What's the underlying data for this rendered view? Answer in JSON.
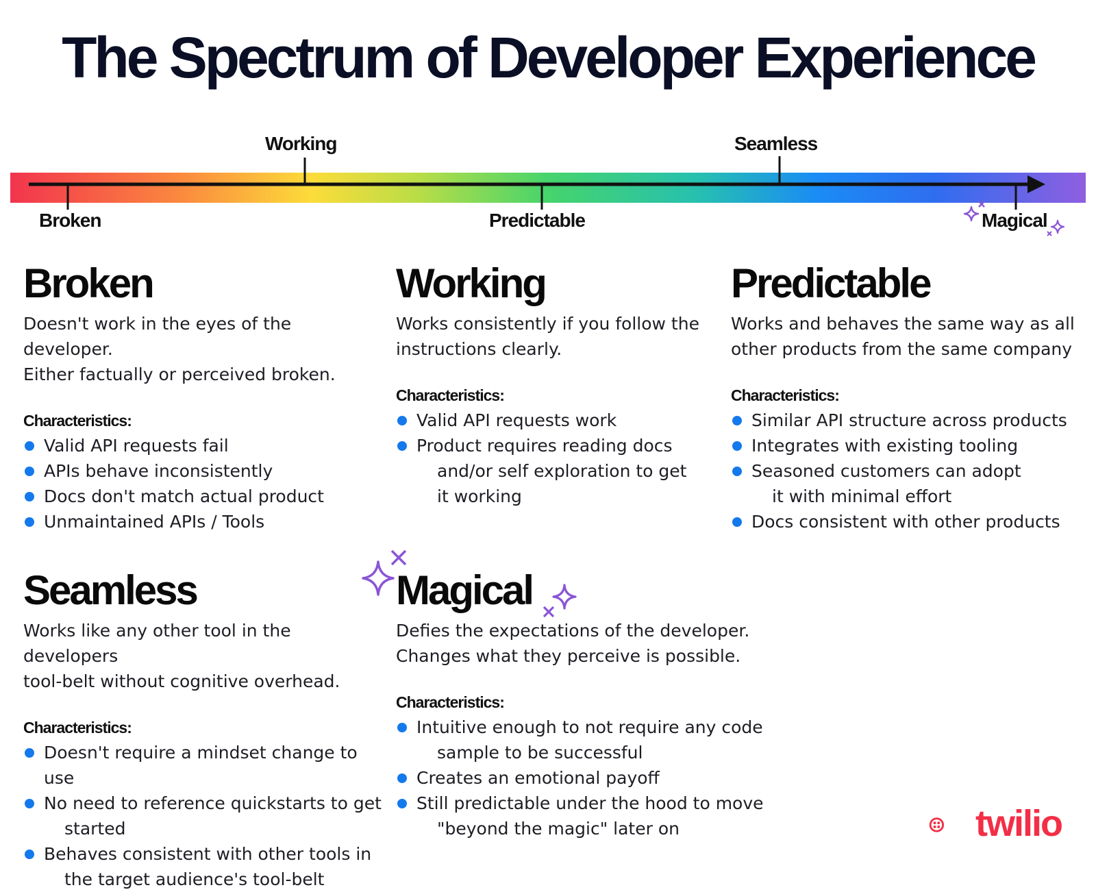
{
  "title": "The Spectrum of Developer Experience",
  "spectrum": {
    "top_labels": [
      "Working",
      "Seamless"
    ],
    "bottom_labels": [
      "Broken",
      "Predictable",
      "Magical"
    ]
  },
  "cards": [
    {
      "heading": "Broken",
      "description": "Doesn't work in the eyes of the developer.\nEither factually or perceived broken.",
      "characteristics_label": "Characteristics:",
      "items": [
        {
          "text": "Valid API requests fail",
          "cont": ""
        },
        {
          "text": "APIs behave inconsistently",
          "cont": ""
        },
        {
          "text": "Docs don't match actual product",
          "cont": ""
        },
        {
          "text": "Unmaintained APIs / Tools",
          "cont": ""
        }
      ]
    },
    {
      "heading": "Working",
      "description": "Works consistently if you follow the\ninstructions clearly.",
      "characteristics_label": "Characteristics:",
      "items": [
        {
          "text": "Valid API requests work",
          "cont": ""
        },
        {
          "text": "Product requires reading docs",
          "cont": "and/or self exploration to get\nit working"
        }
      ]
    },
    {
      "heading": "Predictable",
      "description": "Works and behaves the same way as all\nother products from the same company",
      "characteristics_label": "Characteristics:",
      "items": [
        {
          "text": "Similar API structure across products",
          "cont": ""
        },
        {
          "text": "Integrates with existing tooling",
          "cont": ""
        },
        {
          "text": "Seasoned customers can adopt",
          "cont": "it with minimal effort"
        },
        {
          "text": "Docs consistent with other products",
          "cont": ""
        }
      ]
    },
    {
      "heading": "Seamless",
      "description": "Works like any other tool in the developers\ntool-belt without cognitive overhead.",
      "characteristics_label": "Characteristics:",
      "items": [
        {
          "text": "Doesn't require a mindset change to use",
          "cont": ""
        },
        {
          "text": "No need to reference quickstarts to get",
          "cont": "started"
        },
        {
          "text": "Behaves consistent with other tools in",
          "cont": "the target audience's tool-belt"
        }
      ]
    },
    {
      "heading": "Magical",
      "description": "Defies the expectations of the developer.\nChanges what they perceive is possible.",
      "characteristics_label": "Characteristics:",
      "items": [
        {
          "text": "Intuitive enough to not require any code",
          "cont": "sample to be successful"
        },
        {
          "text": "Creates an emotional payoff",
          "cont": ""
        },
        {
          "text": "Still predictable under the hood to move",
          "cont": "\"beyond the magic\" later on"
        }
      ]
    }
  ],
  "logo": {
    "text": "twilio",
    "color": "#f22f46"
  },
  "colors": {
    "bullet": "#1479ec",
    "sparkle": "#8a55d6",
    "title": "#0b0f25"
  }
}
